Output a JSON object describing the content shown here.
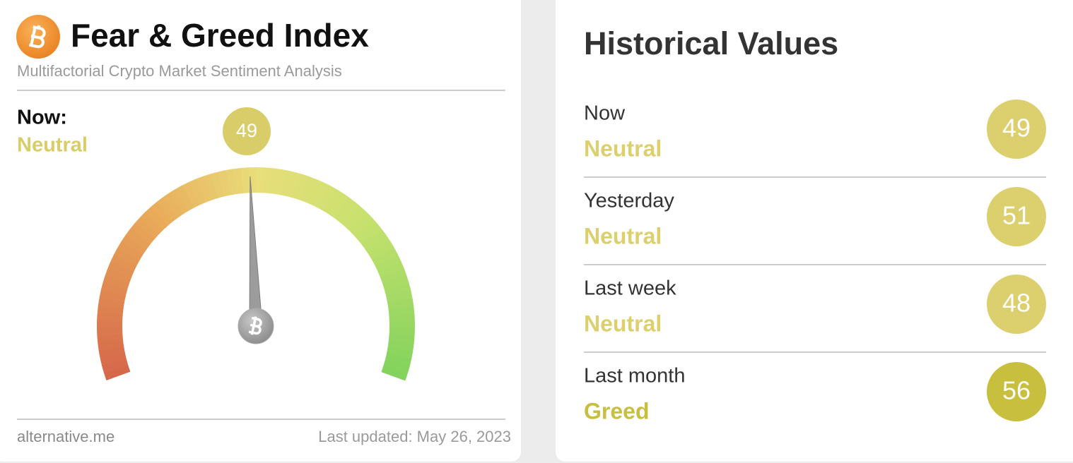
{
  "header": {
    "title": "Fear & Greed Index",
    "subtitle": "Multifactorial Crypto Market Sentiment Analysis"
  },
  "now": {
    "label": "Now:",
    "classification": "Neutral",
    "value": 49,
    "color": "#d9cd6a"
  },
  "footer": {
    "source": "alternative.me",
    "updated": "Last updated: May 26, 2023"
  },
  "history": {
    "title": "Historical Values",
    "rows": [
      {
        "label": "Now",
        "classification": "Neutral",
        "value": 49,
        "color": "#dccf6e"
      },
      {
        "label": "Yesterday",
        "classification": "Neutral",
        "value": 51,
        "color": "#dccf6e"
      },
      {
        "label": "Last week",
        "classification": "Neutral",
        "value": 48,
        "color": "#dccf6e"
      },
      {
        "label": "Last month",
        "classification": "Greed",
        "value": 56,
        "color": "#c9bf3f"
      }
    ]
  }
}
